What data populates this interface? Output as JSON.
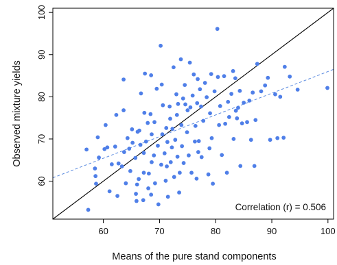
{
  "chart_data": {
    "type": "scatter",
    "title": "",
    "xlabel": "Means of the pure stand components",
    "ylabel": "Observed mixture yields",
    "xlim": [
      51,
      101
    ],
    "ylim": [
      51,
      101
    ],
    "xticks": [
      60,
      70,
      80,
      90,
      100
    ],
    "yticks": [
      60,
      70,
      80,
      90,
      100
    ],
    "xtick_labels": [
      "60",
      "70",
      "80",
      "90",
      "100"
    ],
    "ytick_labels": [
      "60",
      "70",
      "80",
      "90",
      "100"
    ],
    "grid": false,
    "annotation": "Correlation (r) = 0.506",
    "point_color": "#4F7FE8",
    "identity_line": {
      "color": "#000000",
      "points": [
        [
          51,
          51
        ],
        [
          101,
          101
        ]
      ]
    },
    "regression_line": {
      "color": "#5B8BE0",
      "style": "dashed",
      "points": [
        [
          51,
          60.8
        ],
        [
          101,
          86.5
        ]
      ]
    },
    "points": [
      [
        57.3,
        53.2
      ],
      [
        57.0,
        67.5
      ],
      [
        58.6,
        61.2
      ],
      [
        58.7,
        59.4
      ],
      [
        59.2,
        65.6
      ],
      [
        59.0,
        70.4
      ],
      [
        60.4,
        73.3
      ],
      [
        60.2,
        67.6
      ],
      [
        60.7,
        68.0
      ],
      [
        61.5,
        64.0
      ],
      [
        61.1,
        57.6
      ],
      [
        62.1,
        68.2
      ],
      [
        62.3,
        75.7
      ],
      [
        62.7,
        64.2
      ],
      [
        62.5,
        56.5
      ],
      [
        63.3,
        63.5
      ],
      [
        63.6,
        84.1
      ],
      [
        63.7,
        66.9
      ],
      [
        63.6,
        76.8
      ],
      [
        64.0,
        59.5
      ],
      [
        64.6,
        67.7
      ],
      [
        64.8,
        62.4
      ],
      [
        65.2,
        69.1
      ],
      [
        65.1,
        72.3
      ],
      [
        65.7,
        65.5
      ],
      [
        65.8,
        57.0
      ],
      [
        66.1,
        71.7
      ],
      [
        66.0,
        59.2
      ],
      [
        65.9,
        55.3
      ],
      [
        66.4,
        72.0
      ],
      [
        66.3,
        60.5
      ],
      [
        66.6,
        68.6
      ],
      [
        66.7,
        80.8
      ],
      [
        67.2,
        66.7
      ],
      [
        67.3,
        76.2
      ],
      [
        67.4,
        85.5
      ],
      [
        67.2,
        62.0
      ],
      [
        67.1,
        55.5
      ],
      [
        67.6,
        69.4
      ],
      [
        67.9,
        73.8
      ],
      [
        68.0,
        58.3
      ],
      [
        68.1,
        61.8
      ],
      [
        68.4,
        75.9
      ],
      [
        68.5,
        85.1
      ],
      [
        68.6,
        64.5
      ],
      [
        68.5,
        56.8
      ],
      [
        68.6,
        71.1
      ],
      [
        69.1,
        74.0
      ],
      [
        69.0,
        66.1
      ],
      [
        69.2,
        59.5
      ],
      [
        69.7,
        68.4
      ],
      [
        69.8,
        54.5
      ],
      [
        70.2,
        92.1
      ],
      [
        70.3,
        63.9
      ],
      [
        70.5,
        71.1
      ],
      [
        70.4,
        82.9
      ],
      [
        70.6,
        78.0
      ],
      [
        70.9,
        66.6
      ],
      [
        71.1,
        60.1
      ],
      [
        71.2,
        72.6
      ],
      [
        71.4,
        69.3
      ],
      [
        71.3,
        63.5
      ],
      [
        71.5,
        56.3
      ],
      [
        71.9,
        74.8
      ],
      [
        71.8,
        77.7
      ],
      [
        72.0,
        64.5
      ],
      [
        72.2,
        68.0
      ],
      [
        72.5,
        87.0
      ],
      [
        72.3,
        72.4
      ],
      [
        72.6,
        61.0
      ],
      [
        72.8,
        69.8
      ],
      [
        73.0,
        80.6
      ],
      [
        73.1,
        75.7
      ],
      [
        73.2,
        65.8
      ],
      [
        73.3,
        78.3
      ],
      [
        73.6,
        62.0
      ],
      [
        73.5,
        57.3
      ],
      [
        73.8,
        88.9
      ],
      [
        73.9,
        73.3
      ],
      [
        74.0,
        68.3
      ],
      [
        74.2,
        79.6
      ],
      [
        74.3,
        64.3
      ],
      [
        74.6,
        78.2
      ],
      [
        74.5,
        82.8
      ],
      [
        74.9,
        71.6
      ],
      [
        75.0,
        76.8
      ],
      [
        75.2,
        66.1
      ],
      [
        75.4,
        88.1
      ],
      [
        75.5,
        77.5
      ],
      [
        75.7,
        62.0
      ],
      [
        75.9,
        80.3
      ],
      [
        76.1,
        85.3
      ],
      [
        76.3,
        69.4
      ],
      [
        76.4,
        73.1
      ],
      [
        76.6,
        60.6
      ],
      [
        76.8,
        84.2
      ],
      [
        76.7,
        78.5
      ],
      [
        77.0,
        69.5
      ],
      [
        77.2,
        81.8
      ],
      [
        77.4,
        77.7
      ],
      [
        77.5,
        65.7
      ],
      [
        77.8,
        74.3
      ],
      [
        78.1,
        83.3
      ],
      [
        78.4,
        79.9
      ],
      [
        78.7,
        61.6
      ],
      [
        78.9,
        67.8
      ],
      [
        79.0,
        76.1
      ],
      [
        79.2,
        85.4
      ],
      [
        79.3,
        70.2
      ],
      [
        79.5,
        59.4
      ],
      [
        79.8,
        81.3
      ],
      [
        80.3,
        96.1
      ],
      [
        80.4,
        84.7
      ],
      [
        80.6,
        73.3
      ],
      [
        80.8,
        77.8
      ],
      [
        81.1,
        66.2
      ],
      [
        81.5,
        84.9
      ],
      [
        81.7,
        73.6
      ],
      [
        82.0,
        62.0
      ],
      [
        82.2,
        78.8
      ],
      [
        82.4,
        75.2
      ],
      [
        82.8,
        80.7
      ],
      [
        83.1,
        86.1
      ],
      [
        83.2,
        70.0
      ],
      [
        83.5,
        84.4
      ],
      [
        83.6,
        76.7
      ],
      [
        84.0,
        77.4
      ],
      [
        84.3,
        81.4
      ],
      [
        84.4,
        63.6
      ],
      [
        84.7,
        73.7
      ],
      [
        85.0,
        78.6
      ],
      [
        85.6,
        74.0
      ],
      [
        86.0,
        79.1
      ],
      [
        86.3,
        69.8
      ],
      [
        86.6,
        81.0
      ],
      [
        86.9,
        63.6
      ],
      [
        87.1,
        74.5
      ],
      [
        87.4,
        87.8
      ],
      [
        88.1,
        81.3
      ],
      [
        88.8,
        82.7
      ],
      [
        89.3,
        84.5
      ],
      [
        89.7,
        69.8
      ],
      [
        90.6,
        80.6
      ],
      [
        91.0,
        70.2
      ],
      [
        91.5,
        80.0
      ],
      [
        92.1,
        70.3
      ],
      [
        92.3,
        87.1
      ],
      [
        93.2,
        84.8
      ],
      [
        94.6,
        81.7
      ],
      [
        99.9,
        82.1
      ],
      [
        58.5,
        63.0
      ],
      [
        64.3,
        70.2
      ],
      [
        69.5,
        81.9
      ],
      [
        76.9,
        66.9
      ],
      [
        83.8,
        74.9
      ]
    ]
  }
}
